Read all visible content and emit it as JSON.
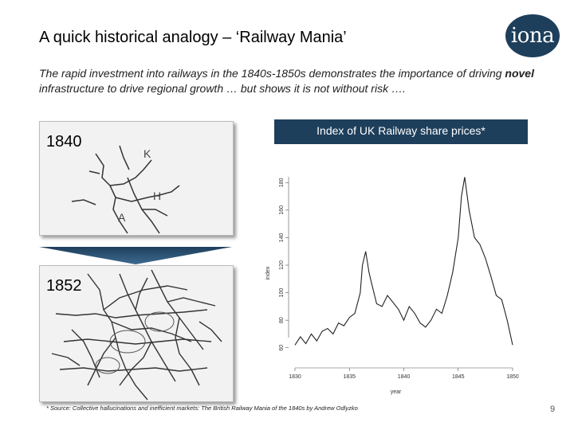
{
  "slide": {
    "title": "A quick historical analogy – ‘Railway Mania’",
    "subtitle_part1": "The rapid investment into railways in the 1840s-1850s demonstrates the importance of driving ",
    "subtitle_bold": "novel",
    "subtitle_part2": " infrastructure to drive regional growth … but shows it is not without risk ….",
    "logo_text": "iona",
    "page_number": "9",
    "footnote": "* Source: Collective hallucinations and inefficient markets: The British Railway Mania of the 1840s by Andrew Odlyzko",
    "brand_color": "#1e3f5c"
  },
  "maps": [
    {
      "label": "1840",
      "letters": [
        "K",
        "H",
        "A"
      ]
    },
    {
      "label": "1852"
    }
  ],
  "chart_header": "Index of UK Railway share prices*",
  "chart_data": {
    "type": "line",
    "title": "",
    "xlabel": "year",
    "ylabel": "index",
    "xlim": [
      1830,
      1850
    ],
    "ylim": [
      50,
      190
    ],
    "xticks": [
      1830,
      1835,
      1840,
      1845,
      1850
    ],
    "xtick_labels": [
      "1830",
      "1835",
      "1840",
      "1845",
      "1850"
    ],
    "yticks": [
      60,
      80,
      100,
      120,
      140,
      160,
      180
    ],
    "ytick_labels": [
      "60",
      "80",
      "100",
      "120",
      "140",
      "160",
      "180"
    ],
    "grid": false,
    "series": [
      {
        "x": [
          1830.0,
          1830.5,
          1831.0,
          1831.5,
          1832.0,
          1832.5,
          1833.0,
          1833.5,
          1834.0,
          1834.5,
          1835.0,
          1835.5,
          1836.0,
          1836.2,
          1836.5,
          1836.8,
          1837.0,
          1837.5,
          1838.0,
          1838.5,
          1839.0,
          1839.5,
          1840.0,
          1840.5,
          1841.0,
          1841.5,
          1842.0,
          1842.5,
          1843.0,
          1843.5,
          1844.0,
          1844.5,
          1845.0,
          1845.3,
          1845.6,
          1846.0,
          1846.5,
          1847.0,
          1847.5,
          1848.0,
          1848.5,
          1849.0,
          1849.5,
          1850.0
        ],
        "values": [
          62,
          68,
          63,
          70,
          65,
          72,
          74,
          70,
          78,
          76,
          82,
          85,
          100,
          120,
          130,
          115,
          108,
          92,
          90,
          98,
          93,
          88,
          80,
          90,
          85,
          78,
          75,
          80,
          88,
          85,
          98,
          115,
          140,
          170,
          184,
          160,
          140,
          135,
          125,
          112,
          98,
          95,
          80,
          62
        ]
      }
    ]
  }
}
